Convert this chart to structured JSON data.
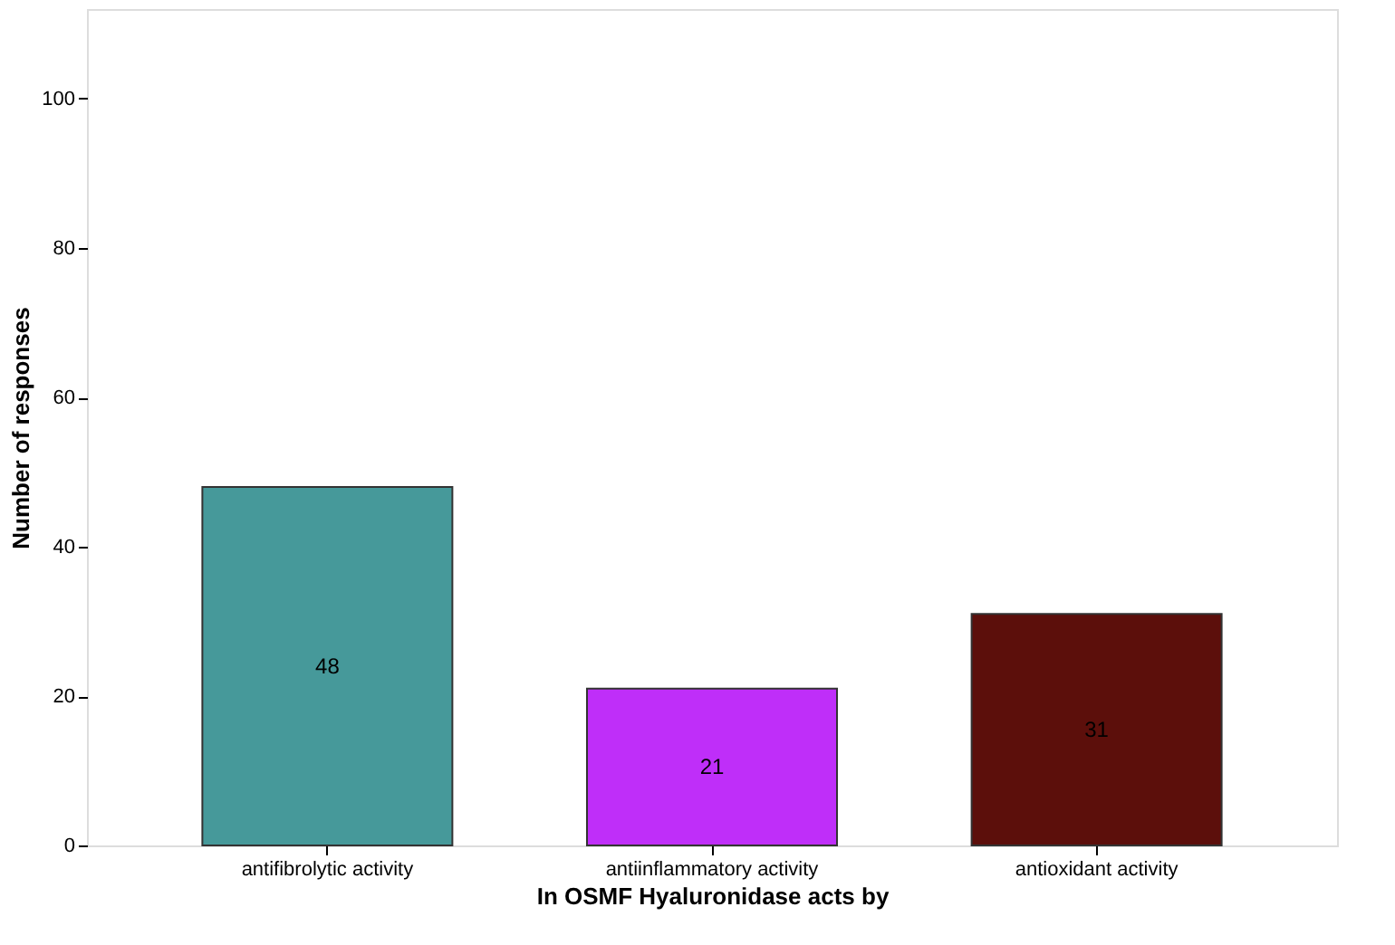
{
  "chart_data": {
    "type": "bar",
    "xlabel": "In OSMF Hyaluronidase acts by",
    "ylabel": "Number of responses",
    "categories": [
      "antifibrolytic activity",
      "antiinflammatory activity",
      "antioxidant activity"
    ],
    "values": [
      48,
      21,
      31
    ],
    "colors": [
      "#46999a",
      "#bf2ef9",
      "#5c0f0b"
    ],
    "ylim": [
      0,
      112
    ],
    "yticks": [
      0,
      20,
      40,
      60,
      80,
      100
    ],
    "data_labels": true,
    "grid": false
  }
}
